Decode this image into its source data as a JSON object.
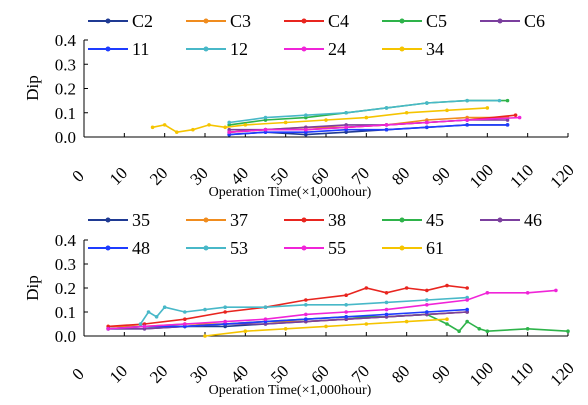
{
  "chart_data": [
    {
      "type": "line",
      "xlabel": "Operation Time(×1,000hour)",
      "ylabel": "Dip",
      "xlim": [
        0,
        120
      ],
      "ylim": [
        0,
        0.4
      ],
      "xticks": [
        "0",
        "10",
        "20",
        "30",
        "40",
        "50",
        "60",
        "70",
        "80",
        "90",
        "100",
        "110",
        "120"
      ],
      "yticks": [
        "0.0",
        "0.1",
        "0.2",
        "0.3",
        "0.4"
      ],
      "grid": false,
      "legend_position": "top",
      "series": [
        {
          "name": "C2",
          "color": "#1f3a93",
          "x": [
            36,
            45,
            55,
            65,
            75,
            85,
            95,
            105
          ],
          "y": [
            0.01,
            0.02,
            0.01,
            0.02,
            0.03,
            0.04,
            0.05,
            0.05
          ]
        },
        {
          "name": "C3",
          "color": "#f08c1e",
          "x": [
            36,
            45,
            55,
            65,
            75,
            85,
            95,
            105
          ],
          "y": [
            0.02,
            0.03,
            0.04,
            0.04,
            0.05,
            0.07,
            0.08,
            0.08
          ]
        },
        {
          "name": "C4",
          "color": "#e8251f",
          "x": [
            36,
            45,
            55,
            65,
            75,
            85,
            95,
            107
          ],
          "y": [
            0.02,
            0.03,
            0.03,
            0.04,
            0.05,
            0.06,
            0.07,
            0.09
          ]
        },
        {
          "name": "C5",
          "color": "#2eb34a",
          "x": [
            36,
            45,
            55,
            65,
            75,
            85,
            95,
            105
          ],
          "y": [
            0.05,
            0.07,
            0.08,
            0.1,
            0.12,
            0.14,
            0.15,
            0.15
          ]
        },
        {
          "name": "C6",
          "color": "#7b3f9e",
          "x": [
            36,
            45,
            55,
            65,
            75,
            85,
            95,
            105
          ],
          "y": [
            0.03,
            0.03,
            0.04,
            0.05,
            0.05,
            0.06,
            0.07,
            0.07
          ]
        },
        {
          "name": "11",
          "color": "#1e3cff",
          "x": [
            36,
            45,
            55,
            65,
            75,
            85,
            95,
            105
          ],
          "y": [
            0.01,
            0.02,
            0.02,
            0.03,
            0.03,
            0.04,
            0.05,
            0.05
          ]
        },
        {
          "name": "12",
          "color": "#48b8c8",
          "x": [
            36,
            45,
            55,
            65,
            75,
            85,
            95,
            103
          ],
          "y": [
            0.06,
            0.08,
            0.09,
            0.1,
            0.12,
            0.14,
            0.15,
            0.15
          ]
        },
        {
          "name": "24",
          "color": "#f024d8",
          "x": [
            36,
            45,
            55,
            65,
            75,
            85,
            95,
            108
          ],
          "y": [
            0.02,
            0.03,
            0.03,
            0.04,
            0.05,
            0.06,
            0.07,
            0.08
          ]
        },
        {
          "name": "34",
          "color": "#f5c400",
          "x": [
            17,
            20,
            23,
            27,
            31,
            35,
            40,
            50,
            60,
            70,
            80,
            90,
            100
          ],
          "y": [
            0.04,
            0.05,
            0.02,
            0.03,
            0.05,
            0.04,
            0.05,
            0.06,
            0.07,
            0.08,
            0.1,
            0.11,
            0.12
          ]
        }
      ]
    },
    {
      "type": "line",
      "xlabel": "Operation Time(×1,000hour)",
      "ylabel": "Dip",
      "xlim": [
        0,
        120
      ],
      "ylim": [
        0,
        0.4
      ],
      "xticks": [
        "0",
        "10",
        "20",
        "30",
        "40",
        "50",
        "60",
        "70",
        "80",
        "90",
        "100",
        "110",
        "120"
      ],
      "yticks": [
        "0.0",
        "0.1",
        "0.2",
        "0.3",
        "0.4"
      ],
      "grid": false,
      "legend_position": "top",
      "series": [
        {
          "name": "35",
          "color": "#1f3a93",
          "x": [
            6,
            15,
            25,
            35,
            45,
            55,
            65,
            75,
            85,
            95
          ],
          "y": [
            0.03,
            0.03,
            0.04,
            0.04,
            0.05,
            0.06,
            0.07,
            0.08,
            0.09,
            0.1
          ]
        },
        {
          "name": "37",
          "color": "#f08c1e",
          "x": [
            6,
            15,
            25,
            35,
            45,
            55,
            65,
            75,
            85,
            95
          ],
          "y": [
            0.04,
            0.04,
            0.05,
            0.05,
            0.06,
            0.06,
            0.07,
            0.08,
            0.09,
            0.1
          ]
        },
        {
          "name": "38",
          "color": "#e8251f",
          "x": [
            6,
            15,
            25,
            35,
            45,
            55,
            65,
            70,
            75,
            80,
            85,
            90,
            95
          ],
          "y": [
            0.04,
            0.05,
            0.07,
            0.1,
            0.12,
            0.15,
            0.17,
            0.2,
            0.18,
            0.2,
            0.19,
            0.21,
            0.2
          ]
        },
        {
          "name": "45",
          "color": "#2eb34a",
          "x": [
            6,
            15,
            25,
            35,
            45,
            55,
            65,
            75,
            85,
            90,
            93,
            95,
            98,
            100,
            110,
            120
          ],
          "y": [
            0.03,
            0.04,
            0.04,
            0.05,
            0.06,
            0.07,
            0.08,
            0.08,
            0.09,
            0.05,
            0.02,
            0.06,
            0.03,
            0.02,
            0.03,
            0.02
          ]
        },
        {
          "name": "46",
          "color": "#7b3f9e",
          "x": [
            6,
            15,
            25,
            35,
            45,
            55,
            65,
            75,
            85,
            95
          ],
          "y": [
            0.03,
            0.03,
            0.04,
            0.05,
            0.05,
            0.06,
            0.07,
            0.08,
            0.09,
            0.1
          ]
        },
        {
          "name": "48",
          "color": "#1e3cff",
          "x": [
            6,
            15,
            25,
            35,
            45,
            55,
            65,
            75,
            85,
            95
          ],
          "y": [
            0.03,
            0.04,
            0.04,
            0.05,
            0.06,
            0.07,
            0.08,
            0.09,
            0.1,
            0.11
          ]
        },
        {
          "name": "53",
          "color": "#48b8c8",
          "x": [
            14,
            16,
            18,
            20,
            25,
            30,
            35,
            45,
            55,
            65,
            75,
            85,
            95
          ],
          "y": [
            0.05,
            0.1,
            0.08,
            0.12,
            0.1,
            0.11,
            0.12,
            0.12,
            0.13,
            0.13,
            0.14,
            0.15,
            0.16
          ]
        },
        {
          "name": "55",
          "color": "#f024d8",
          "x": [
            6,
            15,
            25,
            35,
            45,
            55,
            65,
            75,
            85,
            95,
            100,
            110,
            117
          ],
          "y": [
            0.03,
            0.04,
            0.05,
            0.06,
            0.07,
            0.09,
            0.1,
            0.11,
            0.13,
            0.15,
            0.18,
            0.18,
            0.19
          ]
        },
        {
          "name": "61",
          "color": "#f5c400",
          "x": [
            30,
            40,
            50,
            60,
            70,
            80,
            90
          ],
          "y": [
            0.0,
            0.02,
            0.03,
            0.04,
            0.05,
            0.06,
            0.07
          ]
        }
      ]
    }
  ]
}
